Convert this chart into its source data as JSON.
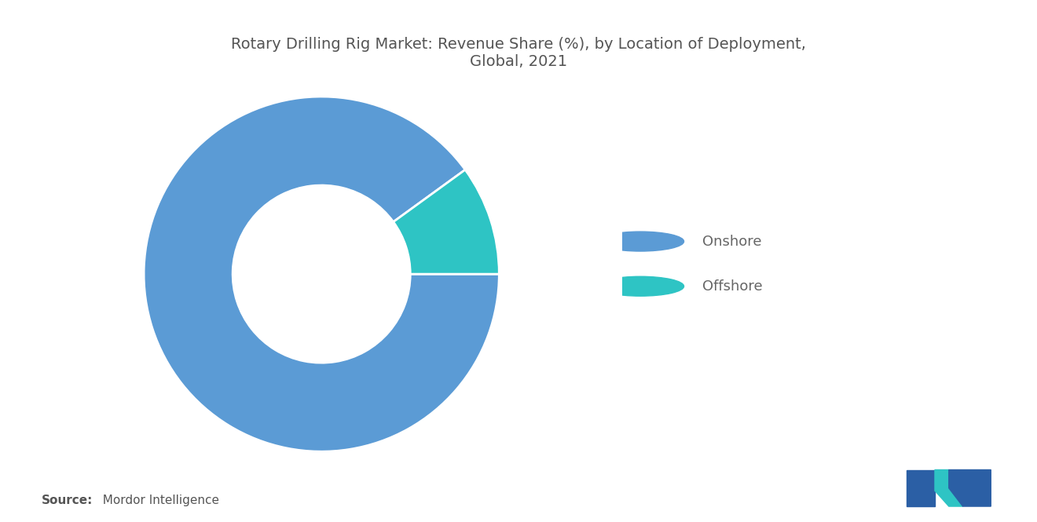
{
  "title": "Rotary Drilling Rig Market: Revenue Share (%), by Location of Deployment,\nGlobal, 2021",
  "title_fontsize": 14,
  "title_color": "#555555",
  "labels": [
    "Onshore",
    "Offshore"
  ],
  "values": [
    90,
    10
  ],
  "colors": [
    "#5B9BD5",
    "#2EC4C4"
  ],
  "background_color": "#ffffff",
  "legend_labels": [
    "Onshore",
    "Offshore"
  ],
  "legend_colors": [
    "#5B9BD5",
    "#2EC4C4"
  ],
  "source_bold": "Source:",
  "source_normal": "  Mordor Intelligence",
  "donut_hole": 0.5,
  "start_angle": 0,
  "counterclock": false
}
